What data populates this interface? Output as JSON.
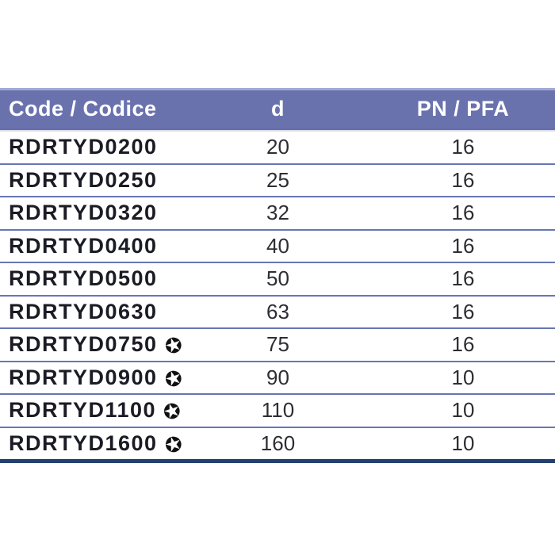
{
  "meta": {
    "background": "#ffffff"
  },
  "colors": {
    "header_bg": "#6a72ae",
    "header_top_edge": "#a2a8d3",
    "header_text": "#ffffff",
    "row_separator": "#6776b3",
    "table_bottom_border": "#23406f",
    "code_text": "#1b1b25",
    "value_text": "#2d2d35",
    "star": "#111111"
  },
  "icons": {
    "star": "✪"
  },
  "table": {
    "columns": [
      {
        "id": "code",
        "label": "Code / Codice"
      },
      {
        "id": "d",
        "label": "d"
      },
      {
        "id": "pn",
        "label": "PN / PFA"
      }
    ],
    "rows": [
      {
        "code": "RDRTYD0200",
        "star": false,
        "d": "20",
        "pn": "16"
      },
      {
        "code": "RDRTYD0250",
        "star": false,
        "d": "25",
        "pn": "16"
      },
      {
        "code": "RDRTYD0320",
        "star": false,
        "d": "32",
        "pn": "16"
      },
      {
        "code": "RDRTYD0400",
        "star": false,
        "d": "40",
        "pn": "16"
      },
      {
        "code": "RDRTYD0500",
        "star": false,
        "d": "50",
        "pn": "16"
      },
      {
        "code": "RDRTYD0630",
        "star": false,
        "d": "63",
        "pn": "16"
      },
      {
        "code": "RDRTYD0750",
        "star": true,
        "d": "75",
        "pn": "16"
      },
      {
        "code": "RDRTYD0900",
        "star": true,
        "d": "90",
        "pn": "10"
      },
      {
        "code": "RDRTYD1100",
        "star": true,
        "d": "110",
        "pn": "10"
      },
      {
        "code": "RDRTYD1600",
        "star": true,
        "d": "160",
        "pn": "10"
      }
    ]
  }
}
